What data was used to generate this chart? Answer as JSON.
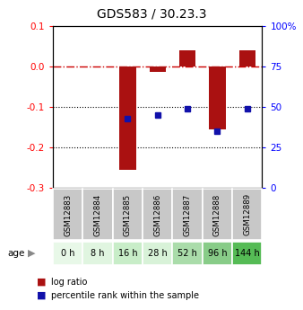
{
  "title": "GDS583 / 30.23.3",
  "samples": [
    "GSM12883",
    "GSM12884",
    "GSM12885",
    "GSM12886",
    "GSM12887",
    "GSM12888",
    "GSM12889"
  ],
  "ages": [
    "0 h",
    "8 h",
    "16 h",
    "28 h",
    "52 h",
    "96 h",
    "144 h"
  ],
  "log_ratio": [
    0.0,
    0.0,
    -0.255,
    -0.012,
    0.04,
    -0.155,
    0.04
  ],
  "pct_rank_y": [
    null,
    null,
    -0.13,
    -0.12,
    -0.105,
    -0.16,
    -0.105
  ],
  "ylim": [
    -0.3,
    0.1
  ],
  "yticks_left": [
    -0.3,
    -0.2,
    -0.1,
    0.0,
    0.1
  ],
  "yticks_right": [
    0,
    25,
    50,
    75,
    100
  ],
  "bar_color": "#aa1111",
  "pct_color": "#1111aa",
  "zero_line_color": "#cc0000",
  "grid_color": "#000000",
  "age_colors": [
    "#e8f8e8",
    "#e0f5e0",
    "#c8edc8",
    "#d8f2d8",
    "#aadcaa",
    "#88cc88",
    "#55bb55"
  ],
  "sample_bg": "#c8c8c8",
  "bar_width": 0.55,
  "legend_red": "log ratio",
  "legend_blue": "percentile rank within the sample"
}
